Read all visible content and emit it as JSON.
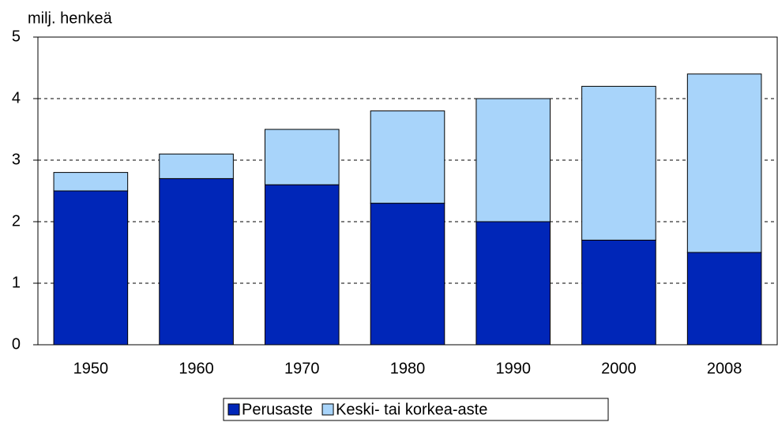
{
  "chart_data": {
    "type": "stacked_bar",
    "y_label": "milj. henkeä",
    "categories": [
      "1950",
      "1960",
      "1970",
      "1980",
      "1990",
      "2000",
      "2008"
    ],
    "series": [
      {
        "name": "Perusaste",
        "color": "#0026b8",
        "values": [
          2.5,
          2.7,
          2.6,
          2.3,
          2.0,
          1.7,
          1.5
        ]
      },
      {
        "name": "Keski- tai korkea-aste",
        "color": "#a8d4fa",
        "values": [
          0.3,
          0.4,
          0.9,
          1.5,
          2.0,
          2.5,
          2.9
        ]
      }
    ],
    "ylim": [
      0,
      5
    ],
    "yticks": [
      0,
      1,
      2,
      3,
      4,
      5
    ],
    "grid": true,
    "legend": "bottom"
  }
}
